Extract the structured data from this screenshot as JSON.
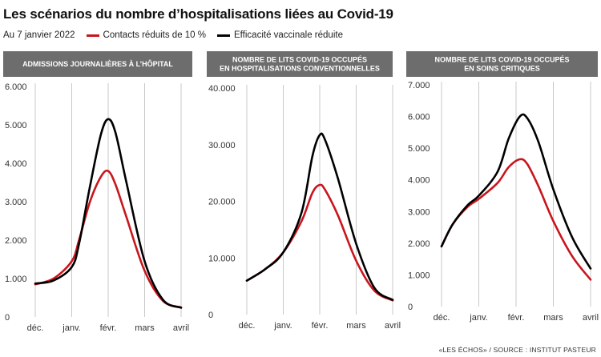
{
  "title": "Les scénarios du nombre d’hospitalisations liées au Covid-19",
  "date_label": "Au 7 janvier 2022",
  "legend": [
    {
      "label": "Contacts réduits de 10 %",
      "color": "#c8161d"
    },
    {
      "label": "Efficacité vaccinale réduite",
      "color": "#000000"
    }
  ],
  "source": "«LES ÉCHOS» / SOURCE : INSTITUT PASTEUR",
  "colors": {
    "header_bg": "#6d6d6d",
    "grid": "#c9c9c9",
    "red": "#c8161d",
    "black": "#000000"
  },
  "chart_data": [
    {
      "type": "line",
      "title_lines": [
        "ADMISSIONS JOURNALIÈRES À L’HÔPITAL"
      ],
      "x_labels": [
        "déc.",
        "janv.",
        "févr.",
        "mars",
        "avril"
      ],
      "x_range": [
        0,
        4
      ],
      "ylim": [
        0,
        6000
      ],
      "y_ticks": [
        0,
        1000,
        2000,
        3000,
        4000,
        5000,
        6000
      ],
      "y_tick_labels": [
        "0",
        "1.000",
        "2.000",
        "3.000",
        "4.000",
        "5.000",
        "6.000"
      ],
      "grid": "vertical",
      "series": [
        {
          "name": "Contacts réduits de 10 %",
          "color": "#c8161d",
          "x": [
            0,
            0.5,
            1,
            1.2,
            1.5,
            1.8,
            2.0,
            2.2,
            2.5,
            3.0,
            3.5,
            4.0
          ],
          "y": [
            850,
            1000,
            1450,
            2000,
            3000,
            3650,
            3800,
            3450,
            2600,
            1200,
            420,
            250
          ]
        },
        {
          "name": "Efficacité vaccinale réduite",
          "color": "#000000",
          "x": [
            0,
            0.5,
            1,
            1.2,
            1.5,
            1.8,
            2.0,
            2.2,
            2.5,
            3.0,
            3.5,
            4.0
          ],
          "y": [
            870,
            950,
            1300,
            1900,
            3400,
            4750,
            5150,
            4800,
            3500,
            1450,
            450,
            240
          ]
        }
      ]
    },
    {
      "type": "line",
      "title_lines": [
        "NOMBRE DE LITS COVID-19 OCCUPÉS",
        "EN HOSPITALISATIONS CONVENTIONNELLES"
      ],
      "x_labels": [
        "déc.",
        "janv.",
        "févr.",
        "mars",
        "avril"
      ],
      "x_range": [
        0,
        4
      ],
      "ylim": [
        0,
        40000
      ],
      "y_ticks": [
        0,
        10000,
        20000,
        30000,
        40000
      ],
      "y_tick_labels": [
        "0",
        "10.000",
        "20.000",
        "30.000",
        "40.000"
      ],
      "grid": "vertical",
      "series": [
        {
          "name": "Contacts réduits de 10 %",
          "color": "#c8161d",
          "x": [
            0,
            0.5,
            1,
            1.5,
            1.8,
            2.0,
            2.15,
            2.5,
            3.0,
            3.5,
            4.0
          ],
          "y": [
            6000,
            8000,
            11000,
            16500,
            21500,
            22900,
            22000,
            17500,
            9500,
            4200,
            2500
          ]
        },
        {
          "name": "Efficacité vaccinale réduite",
          "color": "#000000",
          "x": [
            0,
            0.5,
            1,
            1.5,
            1.8,
            2.0,
            2.15,
            2.5,
            3.0,
            3.5,
            4.0
          ],
          "y": [
            6000,
            8000,
            11000,
            18000,
            28000,
            31700,
            30800,
            24000,
            12500,
            4700,
            2600
          ]
        }
      ]
    },
    {
      "type": "line",
      "title_lines": [
        "NOMBRE DE LITS COVID-19 OCCUPÉS",
        "EN SOINS CRITIQUES"
      ],
      "x_labels": [
        "déc.",
        "janv.",
        "févr.",
        "mars",
        "avril"
      ],
      "x_range": [
        0,
        4
      ],
      "ylim": [
        0,
        7000
      ],
      "y_ticks": [
        0,
        1000,
        2000,
        3000,
        4000,
        5000,
        6000,
        7000
      ],
      "y_tick_labels": [
        "0",
        "1.000",
        "2.000",
        "3.000",
        "4.000",
        "5.000",
        "6.000",
        "7.000"
      ],
      "grid": "vertical",
      "series": [
        {
          "name": "Contacts réduits de 10 %",
          "color": "#c8161d",
          "x": [
            0,
            0.3,
            0.7,
            1.0,
            1.5,
            1.8,
            2.1,
            2.3,
            2.6,
            3.0,
            3.5,
            4.0
          ],
          "y": [
            1900,
            2600,
            3150,
            3400,
            3900,
            4400,
            4650,
            4500,
            3800,
            2700,
            1600,
            850
          ]
        },
        {
          "name": "Efficacité vaccinale réduite",
          "color": "#000000",
          "x": [
            0,
            0.3,
            0.7,
            1.0,
            1.5,
            1.8,
            2.1,
            2.3,
            2.6,
            3.0,
            3.5,
            4.0
          ],
          "y": [
            1900,
            2600,
            3200,
            3500,
            4250,
            5300,
            6000,
            5950,
            5200,
            3700,
            2200,
            1200
          ]
        }
      ]
    }
  ]
}
